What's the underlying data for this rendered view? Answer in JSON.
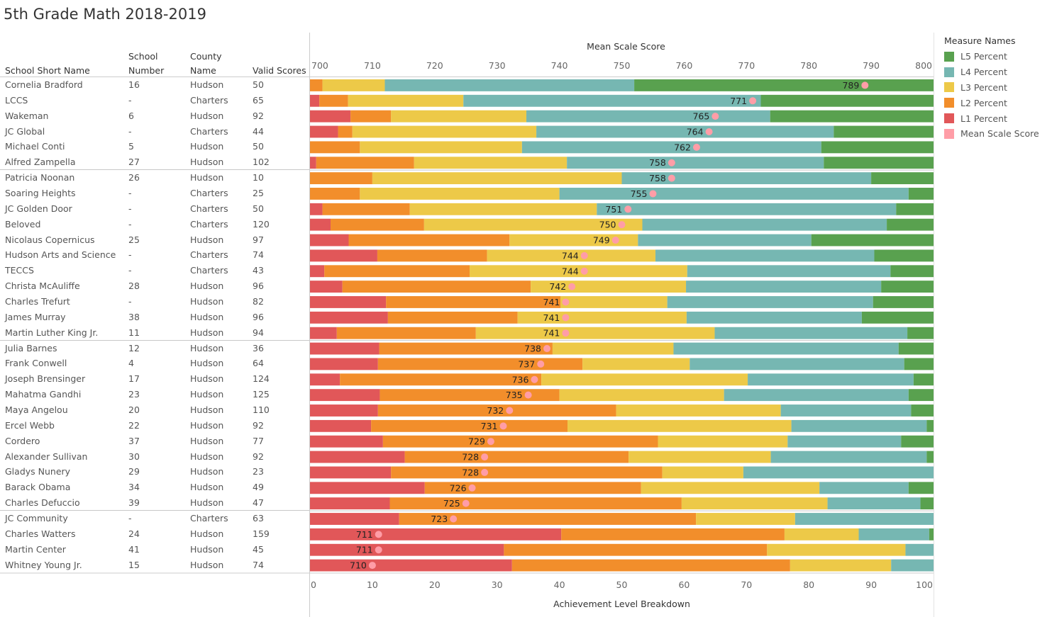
{
  "title": "5th Grade Math 2018-2019",
  "table": {
    "headers": {
      "name": "School Short Name",
      "number": [
        "School",
        "Number"
      ],
      "county": [
        "County",
        "Name"
      ],
      "valid": "Valid Scores"
    }
  },
  "legend": {
    "title": "Measure Names",
    "items": [
      {
        "label": "L5 Percent",
        "color": "#59a14f"
      },
      {
        "label": "L4 Percent",
        "color": "#76b7b2"
      },
      {
        "label": "L3 Percent",
        "color": "#edc948"
      },
      {
        "label": "L2 Percent",
        "color": "#f28e2b"
      },
      {
        "label": "L1 Percent",
        "color": "#e15759"
      },
      {
        "label": "Mean Scale Score",
        "color": "#ff9da7"
      }
    ]
  },
  "chart_data": {
    "type": "bar",
    "stacked": true,
    "orientation": "horizontal",
    "top_axis": {
      "title": "Mean Scale Score",
      "range": [
        700,
        800
      ],
      "ticks": [
        700,
        710,
        720,
        730,
        740,
        750,
        760,
        770,
        780,
        790,
        800
      ]
    },
    "bottom_axis": {
      "title": "Achievement Level Breakdown",
      "range": [
        0,
        100
      ],
      "ticks": [
        0,
        10,
        20,
        30,
        40,
        50,
        60,
        70,
        80,
        90,
        100
      ]
    },
    "series_order": [
      "L1 Percent",
      "L2 Percent",
      "L3 Percent",
      "L4 Percent",
      "L5 Percent"
    ],
    "rows": [
      {
        "name": "Cornelia Bradford",
        "number": "16",
        "county": "Hudson",
        "valid": "50",
        "l1": 0,
        "l2": 2,
        "l3": 10,
        "l4": 40,
        "l5": 48,
        "mean": 789
      },
      {
        "name": "LCCS",
        "number": "-",
        "county": "Charters",
        "valid": "65",
        "l1": 1.5,
        "l2": 4.6,
        "l3": 18.5,
        "l4": 47.7,
        "l5": 27.7,
        "mean": 771
      },
      {
        "name": "Wakeman",
        "number": "6",
        "county": "Hudson",
        "valid": "92",
        "l1": 6.5,
        "l2": 6.5,
        "l3": 21.7,
        "l4": 39.1,
        "l5": 26.2,
        "mean": 765
      },
      {
        "name": "JC Global",
        "number": "-",
        "county": "Charters",
        "valid": "44",
        "l1": 4.5,
        "l2": 2.3,
        "l3": 29.5,
        "l4": 47.7,
        "l5": 16,
        "mean": 764
      },
      {
        "name": "Michael Conti",
        "number": "5",
        "county": "Hudson",
        "valid": "50",
        "l1": 0,
        "l2": 8,
        "l3": 26,
        "l4": 48,
        "l5": 18,
        "mean": 762
      },
      {
        "name": "Alfred Zampella",
        "number": "27",
        "county": "Hudson",
        "valid": "102",
        "l1": 1,
        "l2": 15.7,
        "l3": 24.5,
        "l4": 41.2,
        "l5": 17.6,
        "mean": 758
      },
      {
        "name": "Patricia Noonan",
        "number": "26",
        "county": "Hudson",
        "valid": "10",
        "l1": 0,
        "l2": 10,
        "l3": 40,
        "l4": 40,
        "l5": 10,
        "mean": 758
      },
      {
        "name": "Soaring Heights",
        "number": "-",
        "county": "Charters",
        "valid": "25",
        "l1": 0,
        "l2": 8,
        "l3": 32,
        "l4": 56,
        "l5": 4,
        "mean": 755
      },
      {
        "name": "JC Golden Door",
        "number": "-",
        "county": "Charters",
        "valid": "50",
        "l1": 2,
        "l2": 14,
        "l3": 30,
        "l4": 48,
        "l5": 6,
        "mean": 751
      },
      {
        "name": "Beloved",
        "number": "-",
        "county": "Charters",
        "valid": "120",
        "l1": 3.3,
        "l2": 15,
        "l3": 35,
        "l4": 39.2,
        "l5": 7.5,
        "mean": 750
      },
      {
        "name": "Nicolaus Copernicus",
        "number": "25",
        "county": "Hudson",
        "valid": "97",
        "l1": 6.2,
        "l2": 25.8,
        "l3": 20.6,
        "l4": 27.8,
        "l5": 19.6,
        "mean": 749
      },
      {
        "name": "Hudson Arts and Science",
        "number": "-",
        "county": "Charters",
        "valid": "74",
        "l1": 10.8,
        "l2": 17.6,
        "l3": 27,
        "l4": 35.1,
        "l5": 9.5,
        "mean": 744
      },
      {
        "name": "TECCS",
        "number": "-",
        "county": "Charters",
        "valid": "43",
        "l1": 2.3,
        "l2": 23.3,
        "l3": 34.9,
        "l4": 32.6,
        "l5": 6.9,
        "mean": 744
      },
      {
        "name": "Christa McAuliffe",
        "number": "28",
        "county": "Hudson",
        "valid": "96",
        "l1": 5.2,
        "l2": 30.2,
        "l3": 24.9,
        "l4": 31.3,
        "l5": 8.4,
        "mean": 742
      },
      {
        "name": "Charles Trefurt",
        "number": "-",
        "county": "Hudson",
        "valid": "82",
        "l1": 12.2,
        "l2": 28,
        "l3": 17.1,
        "l4": 33,
        "l5": 9.7,
        "mean": 741
      },
      {
        "name": "James Murray",
        "number": "38",
        "county": "Hudson",
        "valid": "96",
        "l1": 12.5,
        "l2": 20.8,
        "l3": 27.1,
        "l4": 28.1,
        "l5": 11.5,
        "mean": 741
      },
      {
        "name": "Martin Luther King Jr.",
        "number": "11",
        "county": "Hudson",
        "valid": "94",
        "l1": 4.3,
        "l2": 22.3,
        "l3": 38.3,
        "l4": 30.9,
        "l5": 4.2,
        "mean": 741
      },
      {
        "name": "Julia Barnes",
        "number": "12",
        "county": "Hudson",
        "valid": "36",
        "l1": 11.1,
        "l2": 27.8,
        "l3": 19.4,
        "l4": 36.1,
        "l5": 5.6,
        "mean": 738
      },
      {
        "name": "Frank Conwell",
        "number": "4",
        "county": "Hudson",
        "valid": "64",
        "l1": 10.9,
        "l2": 32.8,
        "l3": 17.2,
        "l4": 34.4,
        "l5": 4.7,
        "mean": 737
      },
      {
        "name": "Joseph Brensinger",
        "number": "17",
        "county": "Hudson",
        "valid": "124",
        "l1": 4.8,
        "l2": 32.3,
        "l3": 33.1,
        "l4": 26.6,
        "l5": 3.2,
        "mean": 736
      },
      {
        "name": "Mahatma Gandhi",
        "number": "23",
        "county": "Hudson",
        "valid": "125",
        "l1": 11.2,
        "l2": 28.8,
        "l3": 26.4,
        "l4": 29.6,
        "l5": 4,
        "mean": 735
      },
      {
        "name": "Maya Angelou",
        "number": "20",
        "county": "Hudson",
        "valid": "110",
        "l1": 10.9,
        "l2": 38.2,
        "l3": 26.4,
        "l4": 20.9,
        "l5": 3.6,
        "mean": 732
      },
      {
        "name": "Ercel Webb",
        "number": "22",
        "county": "Hudson",
        "valid": "92",
        "l1": 9.8,
        "l2": 31.5,
        "l3": 35.9,
        "l4": 21.7,
        "l5": 1.1,
        "mean": 731
      },
      {
        "name": "Cordero",
        "number": "37",
        "county": "Hudson",
        "valid": "77",
        "l1": 11.7,
        "l2": 44.1,
        "l3": 20.8,
        "l4": 18.2,
        "l5": 5.2,
        "mean": 729
      },
      {
        "name": "Alexander Sullivan",
        "number": "30",
        "county": "Hudson",
        "valid": "92",
        "l1": 15.2,
        "l2": 35.9,
        "l3": 22.8,
        "l4": 25,
        "l5": 1.1,
        "mean": 728
      },
      {
        "name": "Gladys Nunery",
        "number": "29",
        "county": "Hudson",
        "valid": "23",
        "l1": 13,
        "l2": 43.5,
        "l3": 13,
        "l4": 30.5,
        "l5": 0,
        "mean": 728
      },
      {
        "name": "Barack Obama",
        "number": "34",
        "county": "Hudson",
        "valid": "49",
        "l1": 18.4,
        "l2": 34.7,
        "l3": 28.6,
        "l4": 14.3,
        "l5": 4,
        "mean": 726
      },
      {
        "name": "Charles Defuccio",
        "number": "39",
        "county": "Hudson",
        "valid": "47",
        "l1": 12.8,
        "l2": 46.8,
        "l3": 23.4,
        "l4": 14.9,
        "l5": 2.1,
        "mean": 725
      },
      {
        "name": "JC Community",
        "number": "-",
        "county": "Charters",
        "valid": "63",
        "l1": 14.3,
        "l2": 47.6,
        "l3": 15.9,
        "l4": 22.2,
        "l5": 0,
        "mean": 723
      },
      {
        "name": "Charles Watters",
        "number": "24",
        "county": "Hudson",
        "valid": "159",
        "l1": 40.3,
        "l2": 35.8,
        "l3": 11.9,
        "l4": 11.3,
        "l5": 0.7,
        "mean": 711
      },
      {
        "name": "Martin Center",
        "number": "41",
        "county": "Hudson",
        "valid": "45",
        "l1": 31.1,
        "l2": 42.2,
        "l3": 22.2,
        "l4": 4.5,
        "l5": 0,
        "mean": 711
      },
      {
        "name": "Whitney Young Jr.",
        "number": "15",
        "county": "Hudson",
        "valid": "74",
        "l1": 32.4,
        "l2": 44.6,
        "l3": 16.2,
        "l4": 6.8,
        "l5": 0,
        "mean": 710
      }
    ]
  }
}
